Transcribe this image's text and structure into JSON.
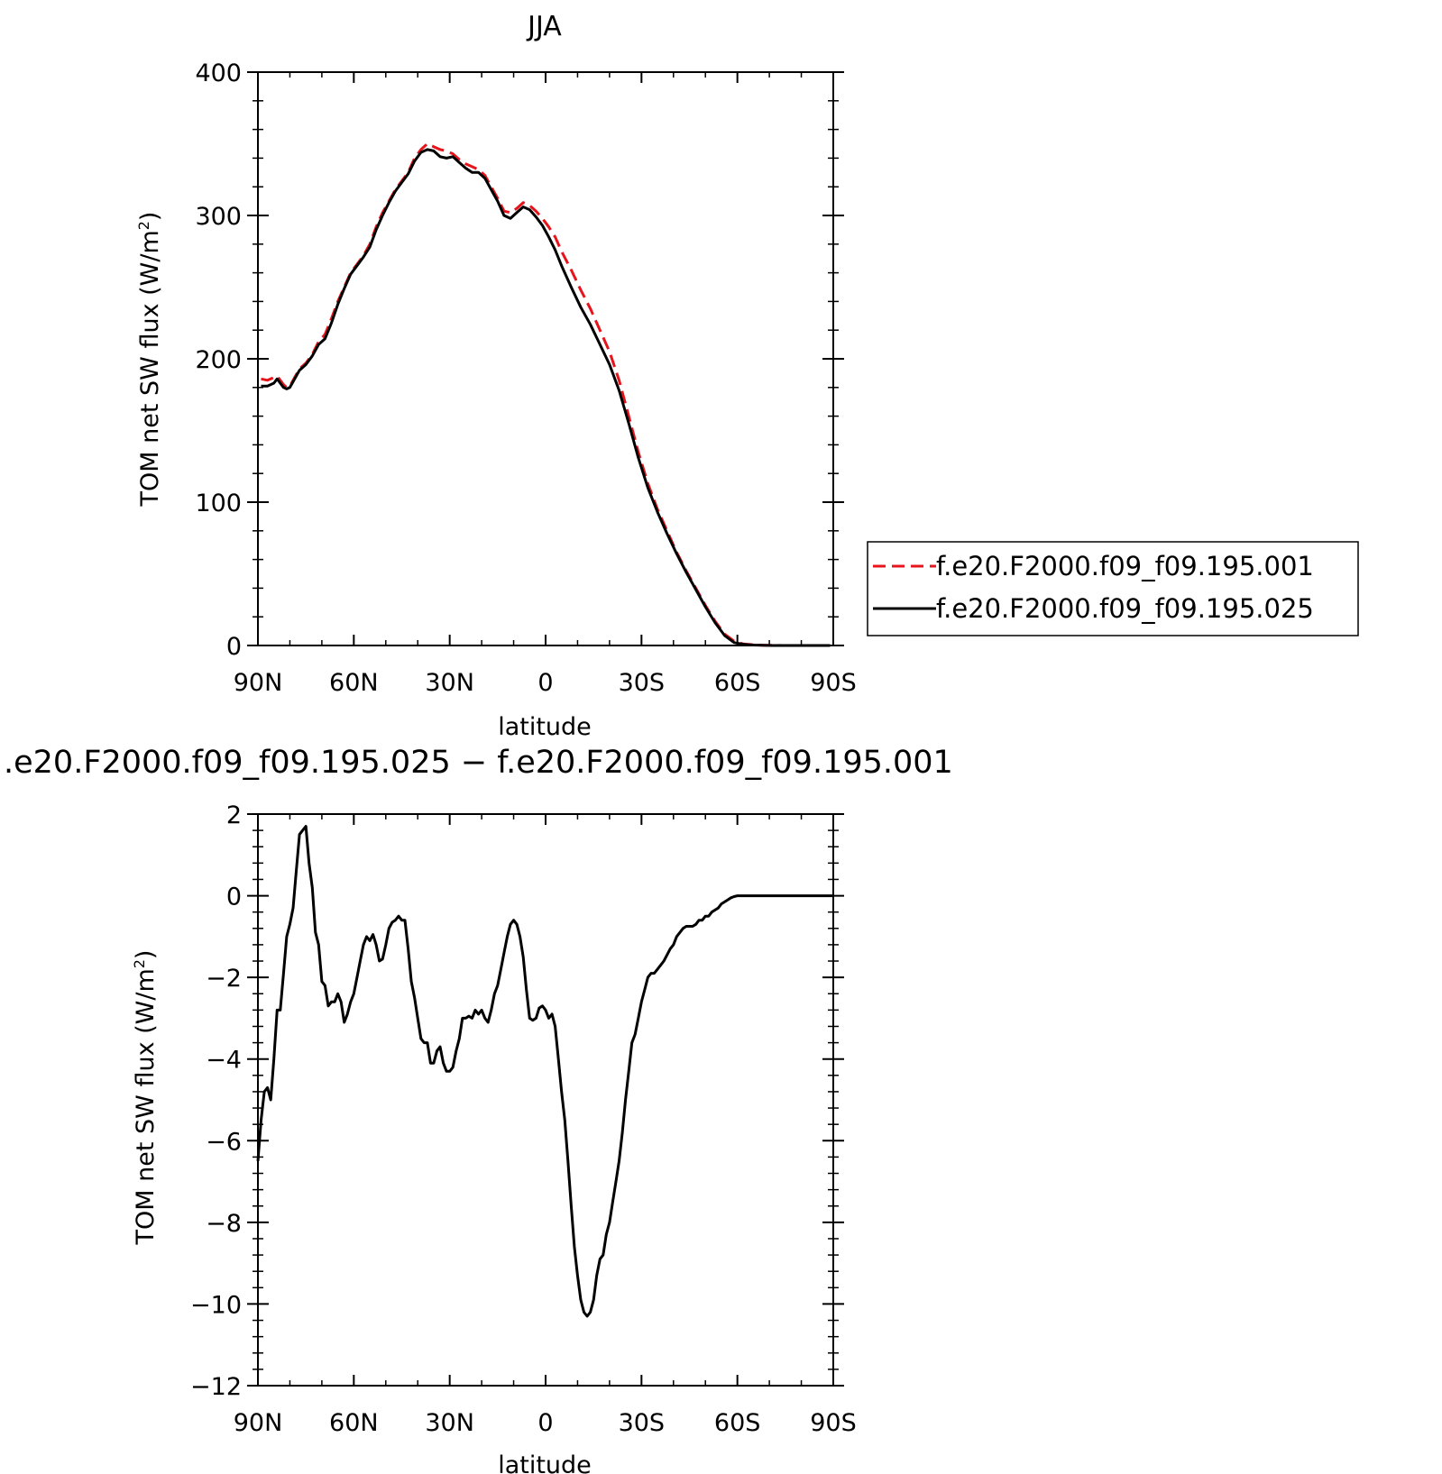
{
  "chart_data": [
    {
      "type": "line",
      "title": "JJA",
      "xlabel": "latitude",
      "ylabel": "TOM net SW flux (W/m",
      "ylabel_sup": "2",
      "ylabel_close": ")",
      "xlim": [
        90,
        -90
      ],
      "ylim": [
        0,
        400
      ],
      "x_ticks": [
        90,
        60,
        30,
        0,
        -30,
        -60,
        -90
      ],
      "x_tick_labels": [
        "90N",
        "60N",
        "30N",
        "0",
        "30S",
        "60S",
        "90S"
      ],
      "y_ticks": [
        0,
        100,
        200,
        300,
        400
      ],
      "y_tick_labels": [
        "0",
        "100",
        "200",
        "300",
        "400"
      ],
      "legend_position": "right",
      "series": [
        {
          "name": "f.e20.F2000.f09_f09.195.001",
          "color": "#e8141c",
          "dash": "dashed",
          "x": [
            89,
            87,
            85,
            84,
            83,
            82,
            81,
            80,
            79,
            78,
            77,
            75,
            73,
            71,
            69,
            67,
            65,
            63,
            61,
            59,
            57,
            55,
            53,
            51,
            49,
            47,
            45,
            43,
            41,
            39,
            37,
            35,
            33,
            31,
            29,
            27,
            25,
            23,
            21,
            19,
            17,
            15,
            13,
            11,
            9,
            7,
            5,
            3,
            1,
            -1,
            -3,
            -5,
            -8,
            -11,
            -14,
            -17,
            -20,
            -23,
            -26,
            -29,
            -32,
            -35,
            -38,
            -41,
            -44,
            -47,
            -50,
            -53,
            -56,
            -59,
            -62,
            -65,
            -68,
            -71,
            -74,
            -77,
            -80,
            -83,
            -86,
            -89
          ],
          "y": [
            186,
            185,
            187,
            188,
            185,
            182,
            180,
            181,
            185,
            189,
            193,
            197,
            203,
            212,
            217,
            228,
            240,
            250,
            260,
            266,
            272,
            280,
            292,
            302,
            310,
            318,
            324,
            330,
            340,
            346,
            350,
            348,
            346,
            345,
            343,
            339,
            336,
            334,
            332,
            328,
            320,
            312,
            303,
            302,
            305,
            309,
            307,
            303,
            298,
            292,
            285,
            275,
            262,
            248,
            235,
            220,
            205,
            185,
            160,
            135,
            113,
            95,
            80,
            65,
            52,
            40,
            28,
            17,
            8,
            3,
            1,
            0.5,
            0.2,
            0.1,
            0,
            0,
            0,
            0,
            0,
            0
          ]
        },
        {
          "name": "f.e20.F2000.f09_f09.195.025",
          "color": "#000000",
          "dash": "solid",
          "x": [
            89,
            87,
            85,
            84,
            83,
            82,
            81,
            80,
            79,
            78,
            77,
            75,
            73,
            71,
            69,
            67,
            65,
            63,
            61,
            59,
            57,
            55,
            53,
            51,
            49,
            47,
            45,
            43,
            41,
            39,
            37,
            35,
            33,
            31,
            29,
            27,
            25,
            23,
            21,
            19,
            17,
            15,
            13,
            11,
            9,
            7,
            5,
            3,
            1,
            -1,
            -3,
            -5,
            -8,
            -11,
            -14,
            -17,
            -20,
            -23,
            -26,
            -29,
            -32,
            -35,
            -38,
            -41,
            -44,
            -47,
            -50,
            -53,
            -56,
            -59,
            -62,
            -65,
            -68,
            -71,
            -74,
            -77,
            -80,
            -83,
            -86,
            -89
          ],
          "y": [
            181,
            181,
            183,
            186,
            183,
            180,
            179,
            180,
            184,
            188,
            192,
            196,
            202,
            210,
            214,
            225,
            238,
            249,
            259,
            265,
            271,
            278,
            290,
            300,
            309,
            317,
            323,
            329,
            338,
            344,
            346,
            345,
            341,
            340,
            341,
            337,
            333,
            330,
            330,
            326,
            318,
            310,
            300,
            298,
            302,
            306,
            304,
            299,
            293,
            285,
            276,
            265,
            250,
            236,
            224,
            210,
            196,
            178,
            155,
            131,
            110,
            93,
            78,
            64,
            51,
            39,
            27,
            16,
            7,
            2,
            0.8,
            0.3,
            0.1,
            0,
            0,
            0,
            0,
            0,
            0,
            0
          ]
        }
      ]
    },
    {
      "type": "line",
      "title": ".e20.F2000.f09_f09.195.025 − f.e20.F2000.f09_f09.195.001",
      "xlabel": "latitude",
      "ylabel": "TOM net SW flux (W/m",
      "ylabel_sup": "2",
      "ylabel_close": ")",
      "xlim": [
        90,
        -90
      ],
      "ylim": [
        -12,
        2
      ],
      "x_ticks": [
        90,
        60,
        30,
        0,
        -30,
        -60,
        -90
      ],
      "x_tick_labels": [
        "90N",
        "60N",
        "30N",
        "0",
        "30S",
        "60S",
        "90S"
      ],
      "y_ticks": [
        -12,
        -10,
        -8,
        -6,
        -4,
        -2,
        0,
        2
      ],
      "y_tick_labels": [
        "−12",
        "−10",
        "−8",
        "−6",
        "−4",
        "−2",
        "0",
        "2"
      ],
      "series": [
        {
          "name": "",
          "color": "#000000",
          "dash": "solid",
          "x": [
            90,
            89,
            88,
            87,
            86,
            85,
            84,
            83,
            82,
            81,
            80,
            79,
            78,
            77,
            76,
            75,
            74,
            73,
            72,
            71,
            70,
            69,
            68,
            67,
            66,
            65,
            64,
            63,
            62,
            61,
            60,
            59,
            58,
            57,
            56,
            55,
            54,
            53,
            52,
            51,
            50,
            49,
            48,
            47,
            46,
            45,
            44,
            43,
            42,
            41,
            40,
            39,
            38,
            37,
            36,
            35,
            34,
            33,
            32,
            31,
            30,
            29,
            28,
            27,
            26,
            25,
            24,
            23,
            22,
            21,
            20,
            19,
            18,
            17,
            16,
            15,
            14,
            13,
            12,
            11,
            10,
            9,
            8,
            7,
            6,
            5,
            4,
            3,
            2,
            1,
            0,
            -1,
            -2,
            -3,
            -4,
            -5,
            -6,
            -7,
            -8,
            -9,
            -10,
            -11,
            -12,
            -13,
            -14,
            -15,
            -16,
            -17,
            -18,
            -19,
            -20,
            -21,
            -22,
            -23,
            -24,
            -25,
            -26,
            -27,
            -28,
            -29,
            -30,
            -31,
            -32,
            -33,
            -34,
            -35,
            -36,
            -37,
            -38,
            -39,
            -40,
            -41,
            -42,
            -43,
            -44,
            -45,
            -46,
            -47,
            -48,
            -49,
            -50,
            -51,
            -52,
            -53,
            -54,
            -55,
            -56,
            -57,
            -58,
            -59,
            -60,
            -61,
            -62,
            -63,
            -64,
            -65,
            -66,
            -68,
            -70,
            -75,
            -80,
            -85,
            -90
          ],
          "y": [
            -6.5,
            -5.5,
            -4.8,
            -4.7,
            -5.0,
            -4.0,
            -2.8,
            -2.8,
            -1.9,
            -1.0,
            -0.7,
            -0.3,
            0.6,
            1.5,
            1.6,
            1.7,
            0.8,
            0.2,
            -0.9,
            -1.2,
            -2.1,
            -2.2,
            -2.7,
            -2.6,
            -2.6,
            -2.4,
            -2.6,
            -3.1,
            -2.9,
            -2.6,
            -2.4,
            -2.0,
            -1.6,
            -1.2,
            -1.0,
            -1.1,
            -0.95,
            -1.2,
            -1.6,
            -1.55,
            -1.2,
            -0.8,
            -0.65,
            -0.6,
            -0.5,
            -0.6,
            -0.6,
            -1.3,
            -2.1,
            -2.5,
            -3.0,
            -3.5,
            -3.6,
            -3.6,
            -4.1,
            -4.1,
            -3.8,
            -3.7,
            -4.1,
            -4.3,
            -4.3,
            -4.2,
            -3.8,
            -3.5,
            -3.0,
            -3.0,
            -2.95,
            -3.0,
            -2.8,
            -2.9,
            -2.8,
            -3.0,
            -3.1,
            -2.8,
            -2.4,
            -2.2,
            -1.8,
            -1.4,
            -1.0,
            -0.7,
            -0.6,
            -0.7,
            -1.0,
            -1.5,
            -2.3,
            -3.0,
            -3.05,
            -3.0,
            -2.75,
            -2.7,
            -2.8,
            -3.0,
            -2.9,
            -3.2,
            -4.0,
            -4.8,
            -5.5,
            -6.5,
            -7.6,
            -8.6,
            -9.3,
            -9.9,
            -10.2,
            -10.3,
            -10.2,
            -9.9,
            -9.3,
            -8.9,
            -8.8,
            -8.3,
            -8.0,
            -7.5,
            -7.0,
            -6.5,
            -5.8,
            -5.0,
            -4.3,
            -3.6,
            -3.4,
            -3.0,
            -2.6,
            -2.3,
            -2.0,
            -1.9,
            -1.9,
            -1.8,
            -1.7,
            -1.6,
            -1.45,
            -1.3,
            -1.2,
            -1.0,
            -0.9,
            -0.8,
            -0.75,
            -0.75,
            -0.75,
            -0.7,
            -0.6,
            -0.6,
            -0.5,
            -0.5,
            -0.4,
            -0.35,
            -0.3,
            -0.2,
            -0.15,
            -0.1,
            -0.05,
            -0.02,
            0,
            0,
            0,
            0,
            0,
            0,
            0,
            0,
            0,
            0,
            0,
            0,
            0
          ]
        }
      ]
    }
  ]
}
